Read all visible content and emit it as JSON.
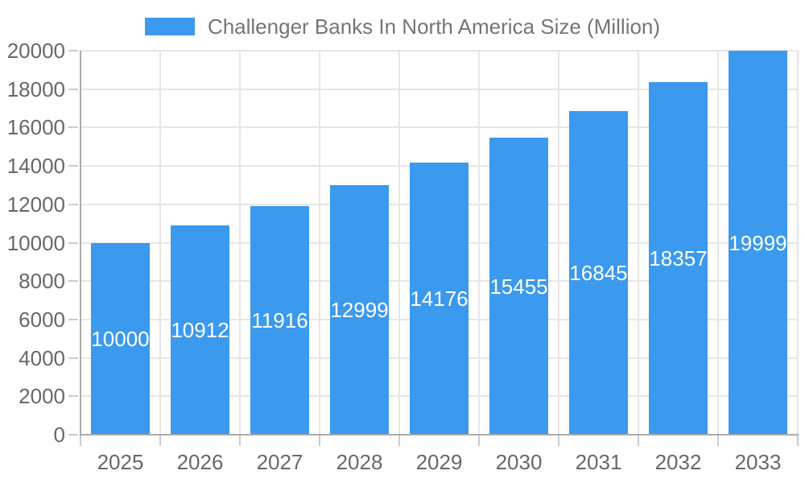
{
  "legend": {
    "series_label": "Challenger Banks In North America Size (Million)"
  },
  "chart_data": {
    "type": "bar",
    "title": "Challenger Banks In North America Size (Million)",
    "categories": [
      "2025",
      "2026",
      "2027",
      "2028",
      "2029",
      "2030",
      "2031",
      "2032",
      "2033"
    ],
    "values": [
      10000,
      10912,
      11916,
      12999,
      14176,
      15455,
      16845,
      18357,
      19999
    ],
    "xlabel": "",
    "ylabel": "",
    "ylim": [
      0,
      20000
    ],
    "yticks": [
      0,
      2000,
      4000,
      6000,
      8000,
      10000,
      12000,
      14000,
      16000,
      18000,
      20000
    ],
    "grid": true,
    "legend_position": "top-center",
    "bar_value_labels": "inside-center",
    "colors": {
      "bar": "#3B99EE",
      "bar_value_text": "#ffffff",
      "axis_text": "#686868",
      "title_text": "#757575",
      "grid_line": "#e6e6e6",
      "axis_line": "#ababab",
      "tick_line": "#cccccc",
      "background": "#ffffff"
    }
  }
}
